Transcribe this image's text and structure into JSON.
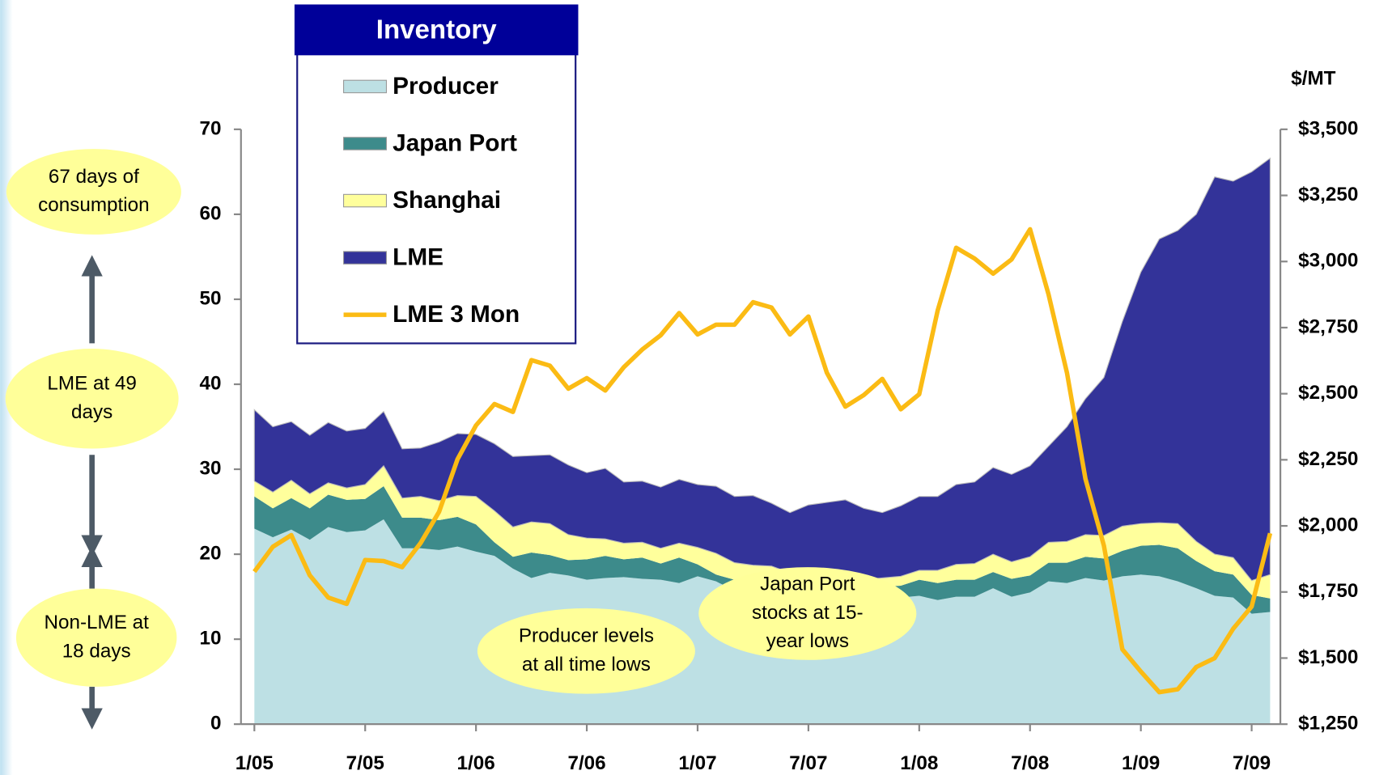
{
  "chart_data": {
    "type": "area",
    "stacked": true,
    "legend_title": "Inventory",
    "y2_label": "$/MT",
    "categories": [
      "1/05",
      null,
      null,
      null,
      null,
      null,
      "7/05",
      null,
      null,
      null,
      null,
      null,
      "1/06",
      null,
      null,
      null,
      null,
      null,
      "7/06",
      null,
      null,
      null,
      null,
      null,
      "1/07",
      null,
      null,
      null,
      null,
      null,
      "7/07",
      null,
      null,
      null,
      null,
      null,
      "1/08",
      null,
      null,
      null,
      null,
      null,
      "7/08",
      null,
      null,
      null,
      null,
      null,
      "1/09",
      null,
      null,
      null,
      null,
      null,
      "7/09",
      null
    ],
    "ylim": [
      0,
      70
    ],
    "yticks": [
      0,
      10,
      20,
      30,
      40,
      50,
      60,
      70
    ],
    "y2lim": [
      1250,
      3500
    ],
    "y2ticks": [
      {
        "value": 1250,
        "label": "$1,250"
      },
      {
        "value": 1500,
        "label": "$1,500"
      },
      {
        "value": 1750,
        "label": "$1,750"
      },
      {
        "value": 2000,
        "label": "$2,000"
      },
      {
        "value": 2250,
        "label": "$2,250"
      },
      {
        "value": 2500,
        "label": "$2,500"
      },
      {
        "value": 2750,
        "label": "$2,750"
      },
      {
        "value": 3000,
        "label": "$3,000"
      },
      {
        "value": 3250,
        "label": "$3,250"
      },
      {
        "value": 3500,
        "label": "$3,500"
      }
    ],
    "series": [
      {
        "name": "Producer",
        "color": "#bde0e4",
        "values": [
          23,
          22,
          22.9,
          21.7,
          23.2,
          22.6,
          22.8,
          24.1,
          20.7,
          20.7,
          20.5,
          20.9,
          20.3,
          19.8,
          18.3,
          17.2,
          17.8,
          17.5,
          17,
          17.2,
          17.3,
          17.1,
          17,
          16.6,
          17.4,
          16.8,
          15.7,
          15.5,
          15.3,
          15,
          15,
          14.8,
          14.7,
          14.6,
          14.8,
          14.9,
          15.1,
          14.6,
          15,
          15,
          16,
          15,
          15.5,
          16.8,
          16.6,
          17.2,
          16.9,
          17.4,
          17.6,
          17.4,
          16.8,
          16,
          15.1,
          14.9,
          13,
          13.2
        ]
      },
      {
        "name": "Japan Port",
        "color": "#3d8b8b",
        "values": [
          3.8,
          3.4,
          3.7,
          3.7,
          3.8,
          3.8,
          3.7,
          3.9,
          3.6,
          3.6,
          3.5,
          3.5,
          3.2,
          1.6,
          1.4,
          3.0,
          2.1,
          1.8,
          2.4,
          2.6,
          2.1,
          2.5,
          1.9,
          3.0,
          1.4,
          0.8,
          1.3,
          1.5,
          1.5,
          1.5,
          1.4,
          1.4,
          1.3,
          1.4,
          1.4,
          1.4,
          1.9,
          2.0,
          2.0,
          2.0,
          1.9,
          2.1,
          2.0,
          2.2,
          2.4,
          2.5,
          2.6,
          3.0,
          3.4,
          3.7,
          3.9,
          3.2,
          2.9,
          2.7,
          2.2,
          1.6
        ]
      },
      {
        "name": "Shanghai",
        "color": "#ffff9c",
        "values": [
          1.8,
          1.9,
          2.1,
          1.7,
          1.4,
          1.4,
          1.7,
          2.4,
          2.3,
          2.5,
          2.3,
          2.5,
          3.3,
          3.7,
          3.5,
          3.6,
          3.7,
          3.0,
          2.5,
          2.0,
          1.9,
          1.8,
          1.8,
          1.7,
          2.0,
          2.5,
          2.0,
          1.7,
          1.8,
          1.3,
          1.1,
          1.1,
          1.0,
          1.0,
          1.0,
          1.1,
          1.1,
          1.5,
          1.8,
          1.9,
          2.1,
          2.0,
          2.2,
          2.4,
          2.5,
          2.6,
          2.7,
          2.9,
          2.6,
          2.6,
          2.9,
          2.3,
          2.0,
          2.0,
          1.7,
          2.8
        ]
      },
      {
        "name": "LME",
        "color": "#333399",
        "values": [
          8.4,
          7.7,
          6.9,
          6.9,
          7.1,
          6.7,
          6.6,
          6.4,
          5.8,
          5.7,
          6.9,
          7.3,
          7.3,
          7.9,
          8.3,
          7.8,
          8.1,
          8.2,
          7.7,
          8.3,
          7.2,
          7.2,
          7.2,
          7.5,
          7.4,
          7.9,
          7.8,
          8.2,
          7.4,
          7.1,
          8.3,
          8.8,
          9.4,
          8.4,
          7.7,
          8.3,
          8.7,
          8.7,
          9.4,
          9.6,
          10.2,
          10.3,
          10.7,
          11.3,
          13.5,
          16.0,
          18.6,
          24.1,
          29.6,
          33.4,
          34.5,
          38.5,
          44.4,
          44.3,
          48.1,
          49.0
        ]
      },
      {
        "name": "LME 3 Mon",
        "type": "line",
        "axis": "y2",
        "color": "#fbbb14",
        "values": [
          1827,
          1921,
          1965,
          1813,
          1729,
          1705,
          1871,
          1867,
          1844,
          1935,
          2053,
          2252,
          2380,
          2461,
          2431,
          2627,
          2606,
          2519,
          2559,
          2512,
          2600,
          2667,
          2721,
          2805,
          2724,
          2761,
          2761,
          2846,
          2826,
          2724,
          2792,
          2579,
          2451,
          2495,
          2556,
          2441,
          2498,
          2815,
          3052,
          3011,
          2954,
          3008,
          3122,
          2876,
          2579,
          2178,
          1925,
          1533,
          1449,
          1371,
          1382,
          1466,
          1500,
          1611,
          1695,
          1972
        ]
      }
    ],
    "annotations": [
      {
        "lines": [
          "67 days of",
          "consumption"
        ]
      },
      {
        "lines": [
          "LME at 49",
          "days"
        ]
      },
      {
        "lines": [
          "Non-LME at",
          "18 days"
        ]
      },
      {
        "lines": [
          "Producer levels",
          "at all time lows"
        ]
      },
      {
        "lines": [
          "Japan Port",
          "stocks at 15-",
          "year lows"
        ]
      }
    ]
  }
}
